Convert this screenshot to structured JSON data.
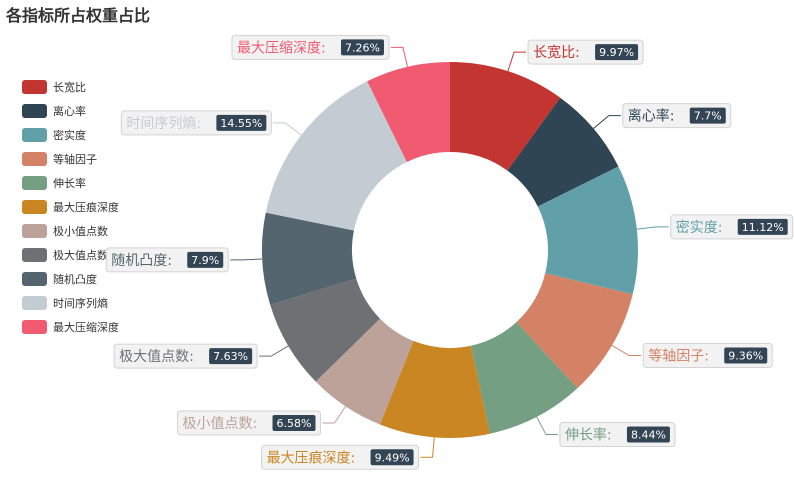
{
  "chart_data": {
    "type": "pie",
    "title": "各指标所占权重占比",
    "legend_position": "left",
    "label_format": "{name}: {value}%",
    "slices": [
      {
        "name": "长宽比",
        "value": 9.97,
        "color": "#c23531"
      },
      {
        "name": "离心率",
        "value": 7.7,
        "color": "#2f4554"
      },
      {
        "name": "密实度",
        "value": 11.12,
        "color": "#61a0a8"
      },
      {
        "name": "等轴因子",
        "value": 9.36,
        "color": "#d48265"
      },
      {
        "name": "伸长率",
        "value": 8.44,
        "color": "#749f83"
      },
      {
        "name": "最大压痕深度",
        "value": 9.49,
        "color": "#ca8622"
      },
      {
        "name": "极小值点数",
        "value": 6.58,
        "color": "#bda29a"
      },
      {
        "name": "极大值点数",
        "value": 7.63,
        "color": "#6e7074"
      },
      {
        "name": "随机凸度",
        "value": 7.9,
        "color": "#546570"
      },
      {
        "name": "时间序列熵",
        "value": 14.55,
        "color": "#c4ccd3"
      },
      {
        "name": "最大压缩深度",
        "value": 7.26,
        "color": "#f05b72"
      }
    ]
  }
}
